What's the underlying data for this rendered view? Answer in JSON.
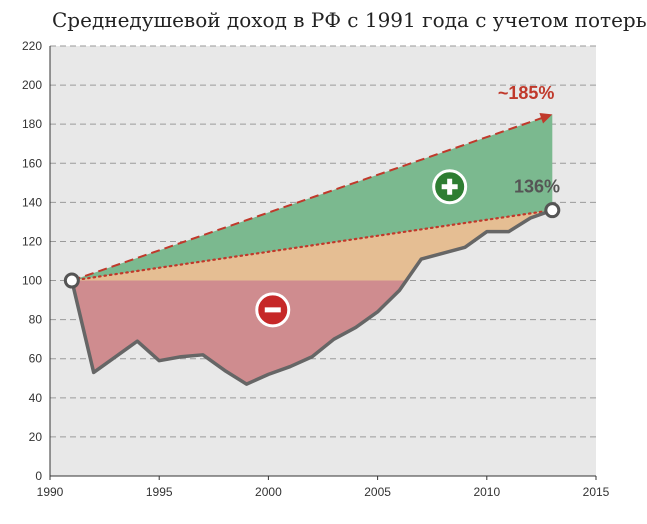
{
  "chart_data": {
    "type": "area",
    "title": "Среднедушевой доход в РФ с 1991 года с учетом потерь",
    "xlabel": "",
    "ylabel": "",
    "xlim": [
      1990,
      2015
    ],
    "ylim": [
      0,
      220
    ],
    "x_ticks": [
      "1990",
      "1995",
      "2000",
      "2005",
      "2010",
      "2015"
    ],
    "y_ticks": [
      "0",
      "20",
      "40",
      "60",
      "80",
      "100",
      "120",
      "140",
      "160",
      "180",
      "200",
      "220"
    ],
    "grid": true,
    "series": [
      {
        "kind": "actual",
        "color": "#666666",
        "points": [
          [
            1991,
            100
          ],
          [
            1992,
            53
          ],
          [
            1993,
            61
          ],
          [
            1994,
            69
          ],
          [
            1995,
            59
          ],
          [
            1996,
            61
          ],
          [
            1997,
            62
          ],
          [
            1998,
            54
          ],
          [
            1999,
            47
          ],
          [
            2000,
            52
          ],
          [
            2001,
            56
          ],
          [
            2002,
            61
          ],
          [
            2003,
            70
          ],
          [
            2004,
            76
          ],
          [
            2005,
            84
          ],
          [
            2006,
            95
          ],
          [
            2007,
            111
          ],
          [
            2008,
            114
          ],
          [
            2009,
            117
          ],
          [
            2010,
            125
          ],
          [
            2011,
            125
          ],
          [
            2012,
            132
          ],
          [
            2013,
            136
          ]
        ]
      },
      {
        "kind": "trend-dotted",
        "color": "#c0392b",
        "points": [
          [
            1991,
            100
          ],
          [
            2013,
            136
          ]
        ]
      },
      {
        "kind": "trend-dashed",
        "color": "#c0392b",
        "points": [
          [
            1991,
            100
          ],
          [
            2013,
            185
          ]
        ]
      }
    ],
    "annotations": {
      "upper": "~185%",
      "actual_end": "136%"
    },
    "region_colors": {
      "gain": "#7bb98f",
      "gap": "#e5be93",
      "loss": "#cf8c8f",
      "plot_bg": "#e8e8e8"
    }
  }
}
